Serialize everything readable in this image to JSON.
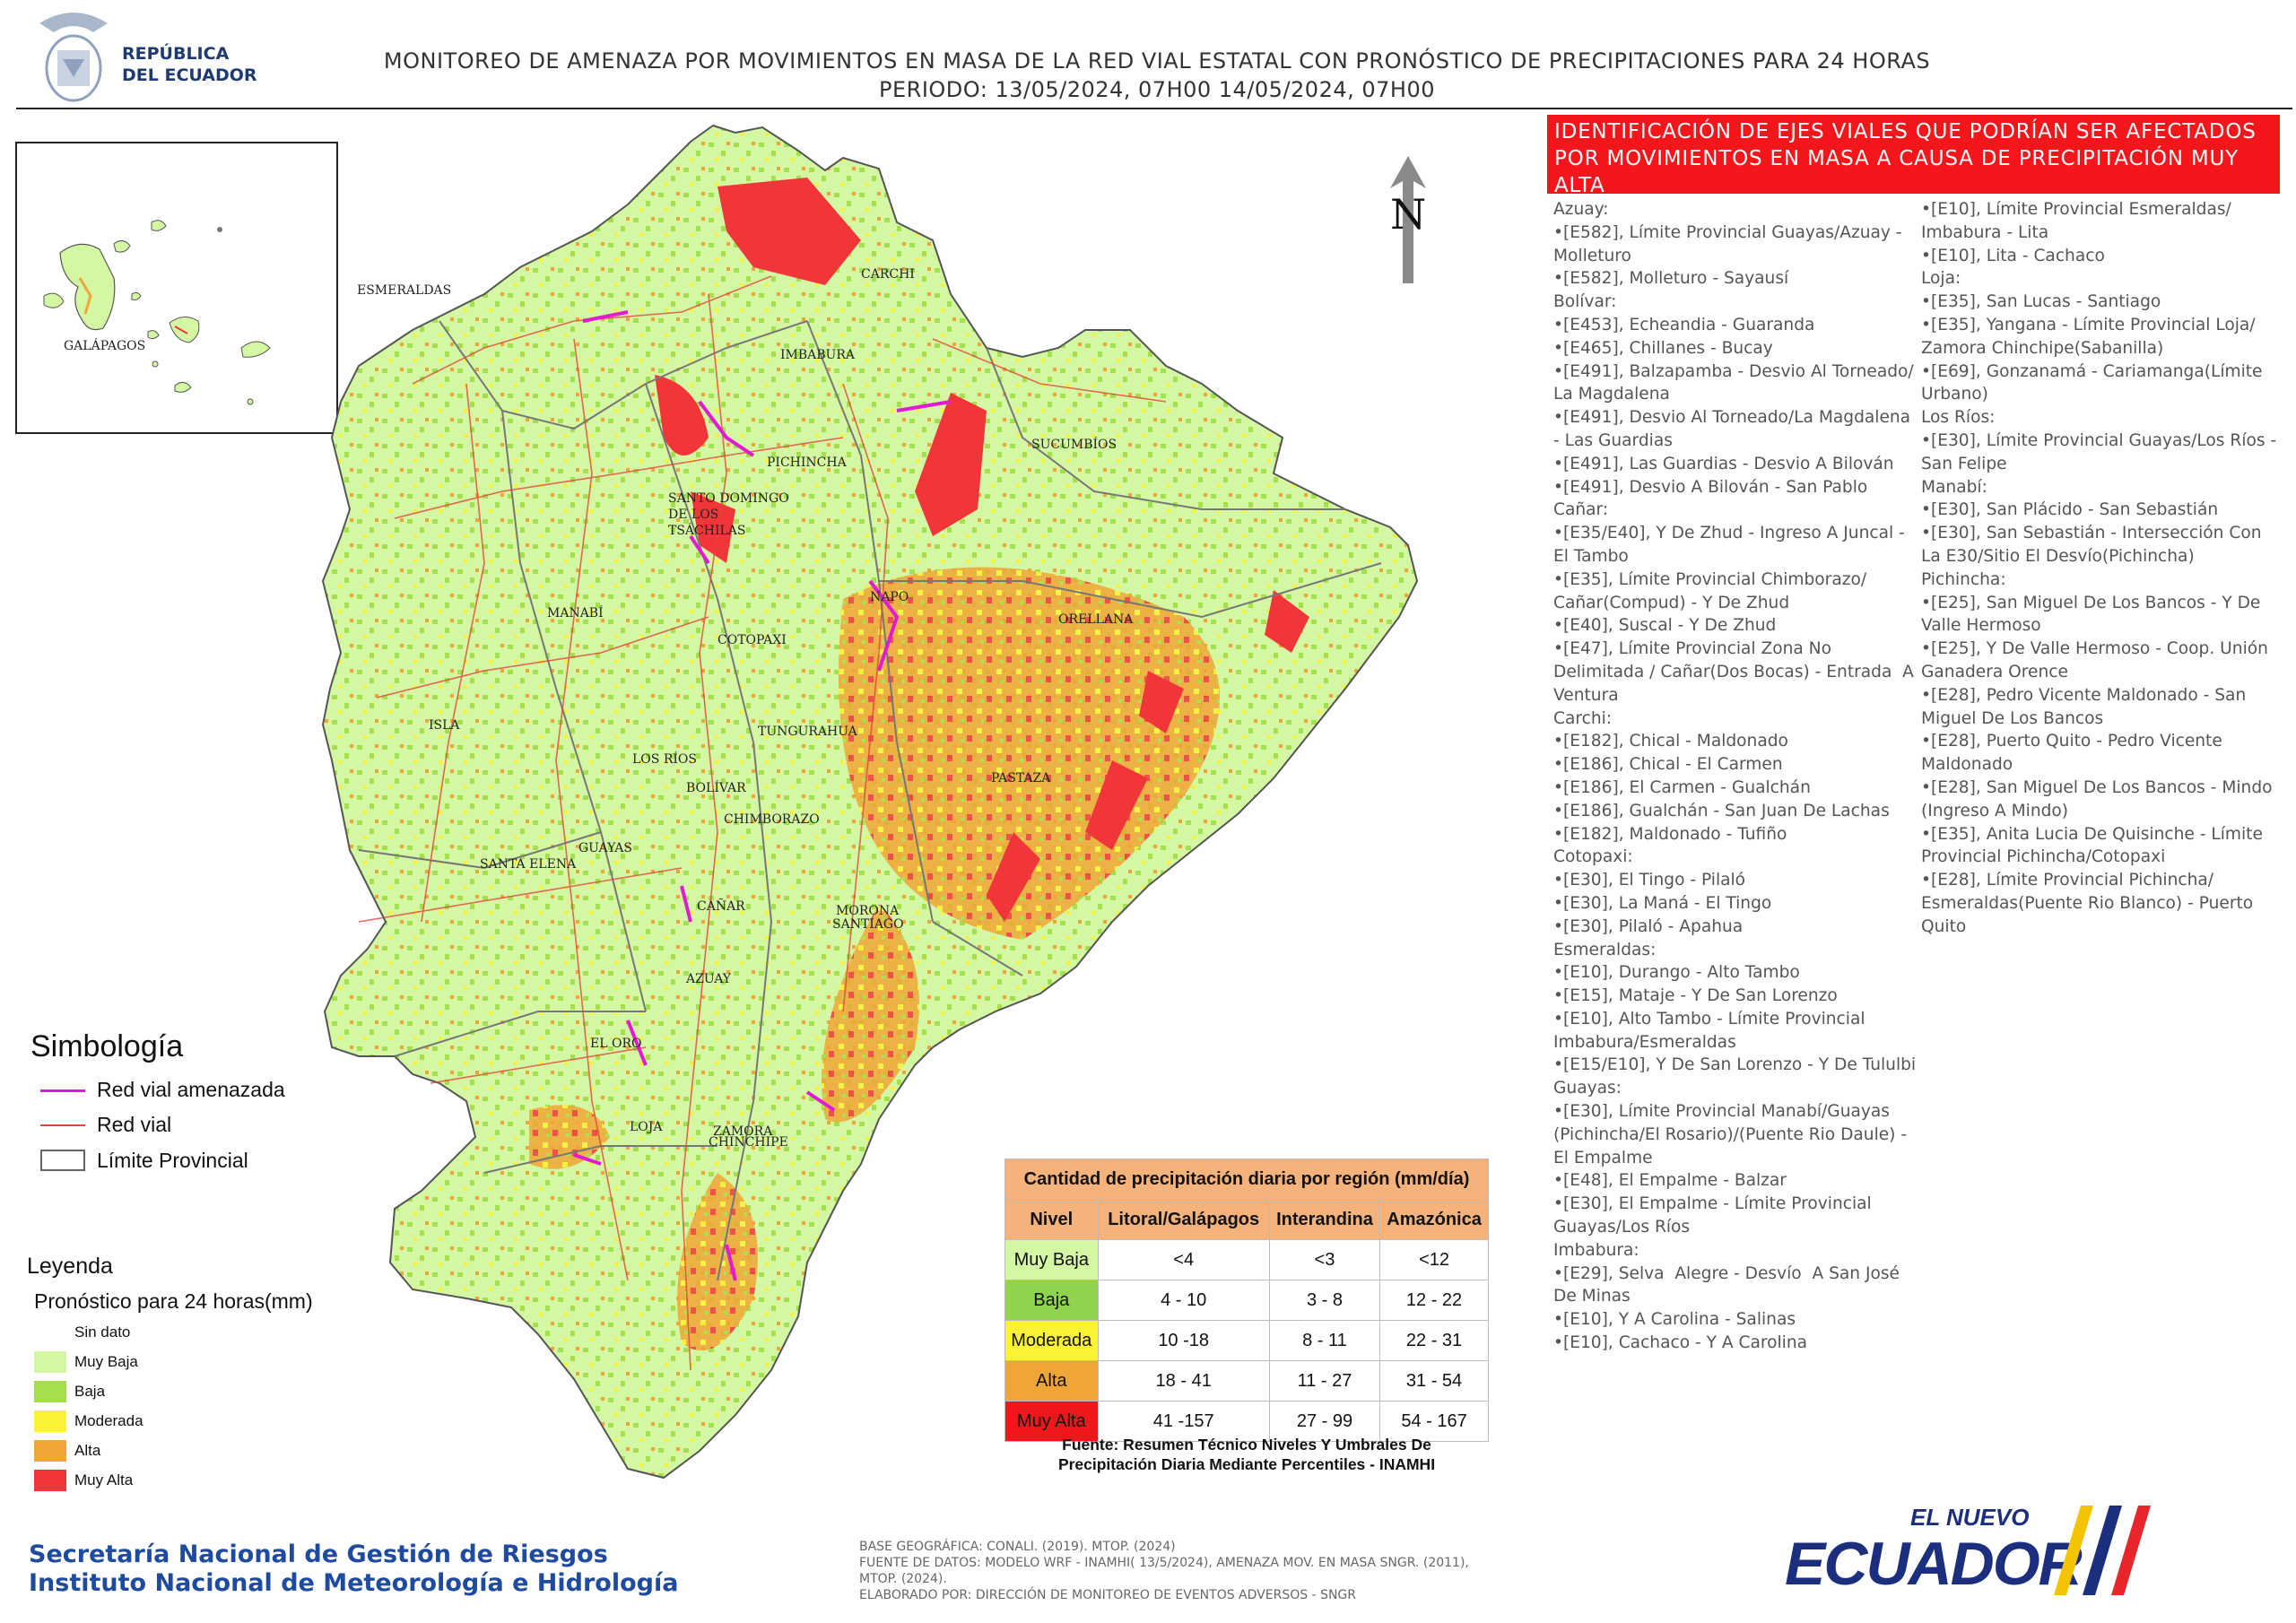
{
  "header": {
    "logo_line1": "REPÚBLICA",
    "logo_line2": "DEL ECUADOR",
    "title_line1": "MONITOREO DE AMENAZA POR MOVIMIENTOS EN MASA DE LA RED VIAL  ESTATAL  CON PRONÓSTICO  DE  PRECIPITACIONES PARA 24 HORAS",
    "title_line2": "PERIODO: 13/05/2024, 07H00 14/05/2024, 07H00"
  },
  "map": {
    "north_label": "N",
    "inset_label": "GALÁPAGOS",
    "isla_label": "ISLA",
    "provinces": {
      "esmeraldas": "ESMERALDAS",
      "carchi": "CARCHI",
      "imbabura": "IMBABURA",
      "sucumbios": "SUCUMBÍOS",
      "pichincha": "PICHINCHA",
      "santo_domingo_1": "SANTO DOMINGO",
      "santo_domingo_2": "DE LOS",
      "santo_domingo_3": "TSÁCHILAS",
      "manabi": "MANABÍ",
      "napo": "NAPO",
      "orellana": "ORELLANA",
      "cotopaxi": "COTOPAXI",
      "tungurahua": "TUNGURAHUA",
      "los_rios": "LOS RÍOS",
      "bolivar": "BOLÍVAR",
      "pastaza": "PASTAZA",
      "chimborazo": "CHIMBORAZO",
      "guayas": "GUAYAS",
      "santa_elena": "SANTA ELENA",
      "canar": "CAÑAR",
      "morona_1": "MORONA",
      "morona_2": "SANTIAGO",
      "azuay": "AZUAY",
      "el_oro": "EL ORO",
      "loja": "LOJA",
      "zamora_1": "ZAMORA",
      "zamora_2": "CHINCHIPE"
    }
  },
  "identification_title": "IDENTIFICACIÓN DE EJES VIALES QUE PODRÍAN SER AFECTADOS POR MOVIMIENTOS EN MASA A CAUSA DE PRECIPITACIÓN MUY ALTA",
  "roads_left": [
    "Azuay:",
    "•[E582], Límite Provincial Guayas/Azuay -",
    "Molleturo",
    "•[E582], Molleturo - Sayausí",
    "Bolívar:",
    "•[E453], Echeandia - Guaranda",
    "•[E465], Chillanes - Bucay",
    "•[E491], Balzapamba - Desvio Al Torneado/",
    "La Magdalena",
    "•[E491], Desvio Al Torneado/La Magdalena",
    "- Las Guardias",
    "•[E491], Las Guardias - Desvio A Bilován",
    "•[E491], Desvio A Bilován - San Pablo",
    "Cañar:",
    "•[E35/E40], Y De Zhud - Ingreso A Juncal -",
    "El Tambo",
    "•[E35], Límite Provincial Chimborazo/",
    "Cañar(Compud) - Y De Zhud",
    "•[E40], Suscal - Y De Zhud",
    "•[E47], Límite Provincial Zona No",
    "Delimitada / Cañar(Dos Bocas) - Entrada  A",
    "Ventura",
    "Carchi:",
    "•[E182], Chical - Maldonado",
    "•[E186], Chical - El Carmen",
    "•[E186], El Carmen - Gualchán",
    "•[E186], Gualchán - San Juan De Lachas",
    "•[E182], Maldonado - Tufiño",
    "Cotopaxi:",
    "•[E30], El Tingo - Pilaló",
    "•[E30], La Maná - El Tingo",
    "•[E30], Pilaló - Apahua",
    "Esmeraldas:",
    "•[E10], Durango - Alto Tambo",
    "•[E15], Mataje - Y De San Lorenzo",
    "•[E10], Alto Tambo - Límite Provincial",
    "Imbabura/Esmeraldas",
    "•[E15/E10], Y De San Lorenzo - Y De Tululbi",
    "Guayas:",
    "•[E30], Límite Provincial Manabí/Guayas",
    "(Pichincha/El Rosario)/(Puente Rio Daule) -",
    "El Empalme",
    "•[E48], El Empalme - Balzar",
    "•[E30], El Empalme - Límite Provincial",
    "Guayas/Los Ríos",
    "Imbabura:",
    "•[E29], Selva  Alegre - Desvío  A San José",
    "De Minas",
    "•[E10], Y A Carolina - Salinas",
    "•[E10], Cachaco - Y A Carolina"
  ],
  "roads_right": [
    "•[E10], Límite Provincial Esmeraldas/",
    "Imbabura - Lita",
    "•[E10], Lita - Cachaco",
    "Loja:",
    "•[E35], San Lucas - Santiago",
    "•[E35], Yangana - Límite Provincial Loja/",
    "Zamora Chinchipe(Sabanilla)",
    "•[E69], Gonzanamá - Cariamanga(Límite",
    "Urbano)",
    "Los Ríos:",
    "•[E30], Límite Provincial Guayas/Los Ríos -",
    "San Felipe",
    "Manabí:",
    "•[E30], San Plácido - San Sebastián",
    "•[E30], San Sebastián - Intersección Con",
    "La E30/Sitio El Desvío(Pichincha)",
    "Pichincha:",
    "•[E25], San Miguel De Los Bancos - Y De",
    "Valle Hermoso",
    "•[E25], Y De Valle Hermoso - Coop. Unión",
    "Ganadera Orence",
    "•[E28], Pedro Vicente Maldonado - San",
    "Miguel De Los Bancos",
    "•[E28], Puerto Quito - Pedro Vicente",
    "Maldonado",
    "•[E28], San Miguel De Los Bancos - Mindo",
    "(Ingreso A Mindo)",
    "•[E35], Anita Lucia De Quisinche - Límite",
    "Provincial Pichincha/Cotopaxi",
    "•[E28], Límite Provincial Pichincha/",
    "Esmeraldas(Puente Rio Blanco) - Puerto",
    "Quito"
  ],
  "symbology": {
    "title": "Simbología",
    "threatened": "Red vial amenazada",
    "road": "Red vial",
    "boundary": "Límite Provincial"
  },
  "legend": {
    "title": "Leyenda",
    "subtitle": "Pronóstico para 24 horas(mm)",
    "classes": [
      {
        "label": "Sin dato",
        "color": "#ffffff"
      },
      {
        "label": "Muy Baja",
        "color": "#d4f7a4"
      },
      {
        "label": "Baja",
        "color": "#a3e04b"
      },
      {
        "label": "Moderada",
        "color": "#fbf235"
      },
      {
        "label": "Alta",
        "color": "#f0a636"
      },
      {
        "label": "Muy Alta",
        "color": "#f1363a"
      }
    ]
  },
  "precip_table": {
    "title": "Cantidad de precipitación diaria por región (mm/día)",
    "headers": [
      "Nivel",
      "Litoral/Galápagos",
      "Interandina",
      "Amazónica"
    ],
    "rows": [
      {
        "level": "Muy Baja",
        "color": "#d4f7a4",
        "values": [
          "<4",
          "<3",
          "<12"
        ]
      },
      {
        "level": "Baja",
        "color": "#8fd44c",
        "values": [
          "4 - 10",
          "3 - 8",
          "12 - 22"
        ]
      },
      {
        "level": "Moderada",
        "color": "#fbf235",
        "values": [
          "10 -18",
          "8 - 11",
          "22 - 31"
        ]
      },
      {
        "level": "Alta",
        "color": "#f0a636",
        "values": [
          "18 - 41",
          "11 - 27",
          "31 - 54"
        ]
      },
      {
        "level": "Muy Alta",
        "color": "#f1161a",
        "values": [
          "41 -157",
          "27 - 99",
          "54 - 167"
        ]
      }
    ],
    "source_line1": "Fuente: Resumen Técnico Niveles Y Umbrales De",
    "source_line2": "Precipitación Diaria Mediante Percentiles - INAMHI"
  },
  "footer": {
    "org_line1": "Secretaría Nacional de Gestión de Riesgos",
    "org_line2": "Instituto Nacional de Meteorología e Hidrología",
    "credits_1": "BASE GEOGRÁFICA: CONALI. (2019). MTOP. (2024)",
    "credits_2": "FUENTE DE DATOS: MODELO WRF - INAMHI( 13/5/2024),  AMENAZA MOV. EN MASA SNGR. (2011),",
    "credits_3": "MTOP. (2024).",
    "credits_4": "ELABORADO POR: DIRECCIÓN DE MONITOREO DE EVENTOS ADVERSOS - SNGR",
    "brand_small": "EL NUEVO",
    "brand_big": "ECUADOR"
  }
}
